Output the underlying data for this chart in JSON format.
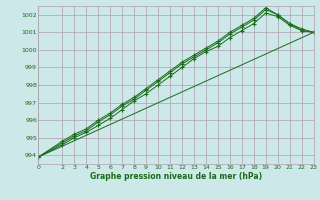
{
  "xlabel": "Graphe pression niveau de la mer (hPa)",
  "bg_color": "#cce8e8",
  "grid_color": "#b0a0b0",
  "line_color": "#1a6b1a",
  "xlim": [
    0,
    23
  ],
  "ylim": [
    993.5,
    1002.5
  ],
  "yticks": [
    994,
    995,
    996,
    997,
    998,
    999,
    1000,
    1001,
    1002
  ],
  "xticks": [
    0,
    2,
    3,
    4,
    5,
    6,
    7,
    8,
    9,
    10,
    11,
    12,
    13,
    14,
    15,
    16,
    17,
    18,
    19,
    20,
    21,
    22,
    23
  ],
  "series": [
    {
      "x": [
        0,
        2,
        3,
        4,
        5,
        6,
        7,
        8,
        9,
        10,
        11,
        12,
        13,
        14,
        15,
        16,
        17,
        18,
        19,
        20,
        21,
        22,
        23
      ],
      "y": [
        993.9,
        994.6,
        995.0,
        995.3,
        995.7,
        996.1,
        996.6,
        997.1,
        997.5,
        998.0,
        998.5,
        999.0,
        999.5,
        999.9,
        1000.2,
        1000.7,
        1001.1,
        1001.5,
        1002.1,
        1001.9,
        1001.4,
        1001.1,
        1001.0
      ],
      "marker": "+"
    },
    {
      "x": [
        0,
        2,
        3,
        4,
        5,
        6,
        7,
        8,
        9,
        10,
        11,
        12,
        13,
        14,
        15,
        16,
        17,
        18,
        19,
        20,
        21,
        22,
        23
      ],
      "y": [
        993.9,
        994.7,
        995.1,
        995.4,
        995.9,
        996.3,
        996.8,
        997.2,
        997.7,
        998.2,
        998.7,
        999.2,
        999.6,
        1000.0,
        1000.4,
        1000.9,
        1001.3,
        1001.7,
        1002.3,
        1002.0,
        1001.5,
        1001.2,
        1001.0
      ],
      "marker": "+"
    },
    {
      "x": [
        0,
        2,
        3,
        4,
        5,
        6,
        7,
        8,
        9,
        10,
        11,
        12,
        13,
        14,
        15,
        16,
        17,
        18,
        19,
        20,
        21,
        22,
        23
      ],
      "y": [
        993.9,
        994.8,
        995.2,
        995.5,
        996.0,
        996.4,
        996.9,
        997.3,
        997.8,
        998.3,
        998.8,
        999.3,
        999.7,
        1000.1,
        1000.5,
        1001.0,
        1001.4,
        1001.8,
        1002.4,
        1002.0,
        1001.5,
        1001.1,
        1001.0
      ],
      "marker": "+"
    },
    {
      "x": [
        0,
        23
      ],
      "y": [
        993.9,
        1001.0
      ],
      "marker": null
    }
  ]
}
